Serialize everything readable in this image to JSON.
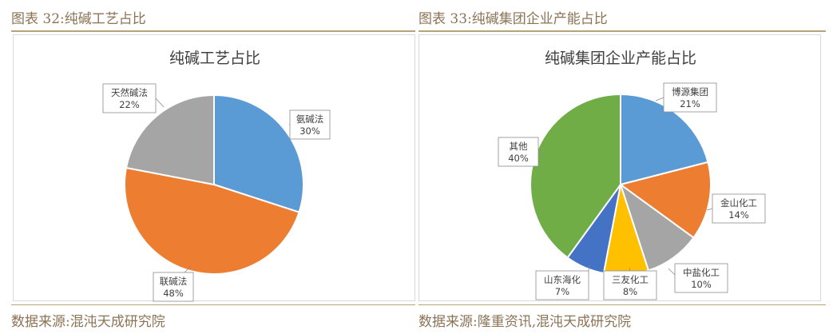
{
  "left": {
    "caption": "图表 32:纯碱工艺占比",
    "source": "数据来源:混沌天成研究院"
  },
  "right": {
    "caption": "图表 33:纯碱集团企业产能占比",
    "source": "数据来源:隆重资讯,混沌天成研究院"
  },
  "chart_data": [
    {
      "type": "pie",
      "title": "纯碱工艺占比",
      "slices": [
        {
          "label": "氨碱法",
          "value": 30,
          "color": "#5b9bd5"
        },
        {
          "label": "联碱法",
          "value": 48,
          "color": "#ed7d31"
        },
        {
          "label": "天然碱法",
          "value": 22,
          "color": "#a5a5a5"
        }
      ]
    },
    {
      "type": "pie",
      "title": "纯碱集团企业产能占比",
      "slices": [
        {
          "label": "博源集团",
          "value": 21,
          "color": "#5b9bd5"
        },
        {
          "label": "金山化工",
          "value": 14,
          "color": "#ed7d31"
        },
        {
          "label": "中盐化工",
          "value": 10,
          "color": "#a5a5a5"
        },
        {
          "label": "三友化工",
          "value": 8,
          "color": "#ffc000"
        },
        {
          "label": "山东海化",
          "value": 7,
          "color": "#4472c4"
        },
        {
          "label": "其他",
          "value": 40,
          "color": "#70ad47"
        }
      ]
    }
  ]
}
